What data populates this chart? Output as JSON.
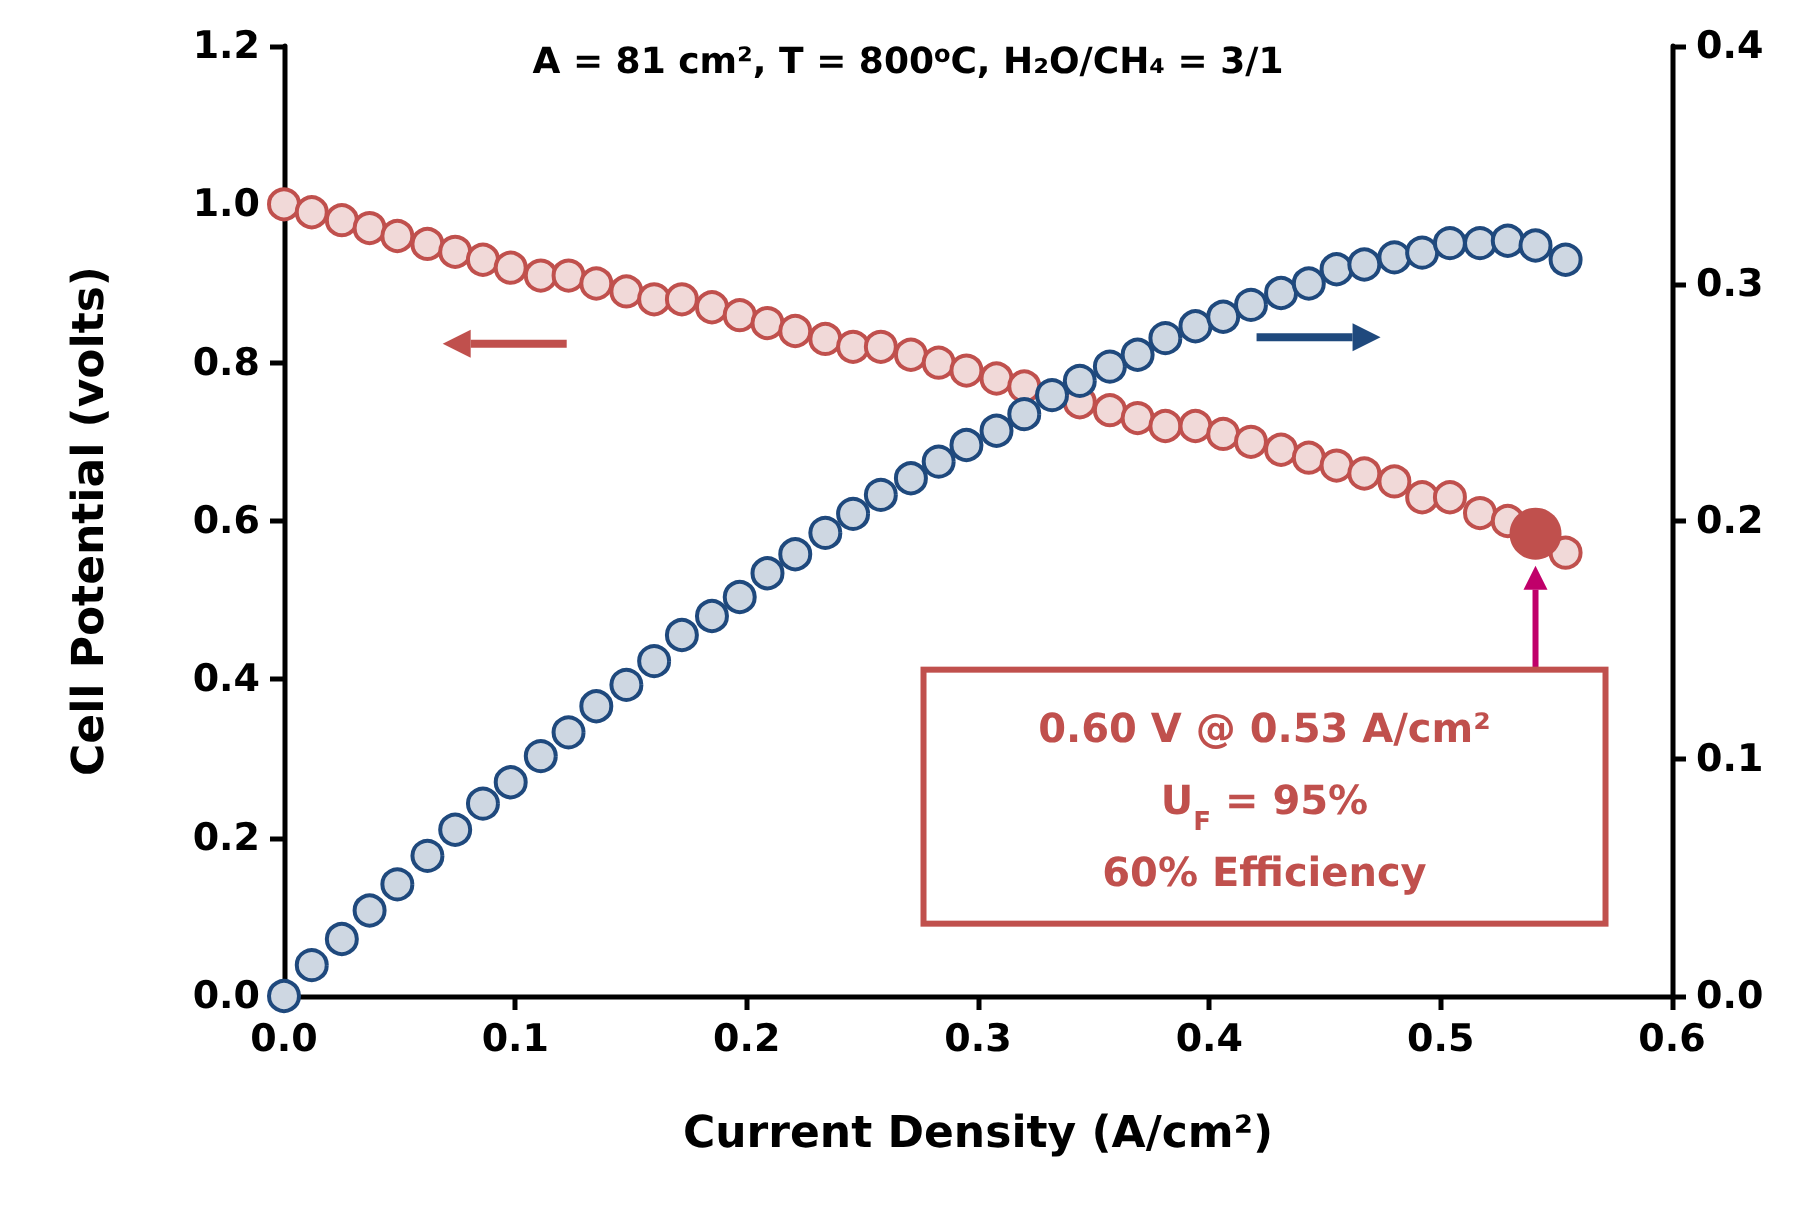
{
  "chart_data": {
    "type": "scatter",
    "title": "A = 81 cm², T = 800$^{o}$C, H₂O/CH₄ = 3/1",
    "xlabel": "Current Density (A/cm²)",
    "ylabel": "Cell Potential (volts)",
    "x": [
      0,
      0.012,
      0.025,
      0.037,
      0.049,
      0.062,
      0.074,
      0.086,
      0.098,
      0.111,
      0.123,
      0.135,
      0.148,
      0.16,
      0.172,
      0.185,
      0.197,
      0.209,
      0.221,
      0.234,
      0.246,
      0.258,
      0.271,
      0.283,
      0.295,
      0.308,
      0.32,
      0.332,
      0.344,
      0.357,
      0.369,
      0.381,
      0.394,
      0.406,
      0.418,
      0.431,
      0.443,
      0.455,
      0.467,
      0.48,
      0.492,
      0.504,
      0.517,
      0.529,
      0.541,
      0.554
    ],
    "series": [
      {
        "color": "#c0504d",
        "values": [
          1.0,
          0.99,
          0.98,
          0.97,
          0.96,
          0.95,
          0.94,
          0.93,
          0.92,
          0.91,
          0.91,
          0.9,
          0.89,
          0.88,
          0.88,
          0.87,
          0.86,
          0.85,
          0.84,
          0.83,
          0.82,
          0.82,
          0.81,
          0.8,
          0.79,
          0.78,
          0.77,
          null,
          0.75,
          0.74,
          0.73,
          0.72,
          0.72,
          0.71,
          0.7,
          0.69,
          0.68,
          0.67,
          0.66,
          0.65,
          0.63,
          0.63,
          0.61,
          0.6,
          null,
          0.56
        ]
      },
      {
        "color": "#1f497d",
        "axis": "y2",
        "values": [
          0.0,
          0.013,
          0.024,
          0.036,
          0.047,
          0.059,
          0.07,
          0.081,
          0.09,
          0.101,
          0.111,
          0.122,
          0.131,
          0.141,
          0.152,
          0.16,
          0.168,
          0.178,
          0.186,
          0.195,
          0.203,
          0.211,
          0.218,
          0.225,
          0.232,
          0.238,
          0.245,
          0.253,
          0.259,
          0.265,
          0.27,
          0.277,
          0.282,
          0.286,
          0.291,
          0.296,
          0.3,
          0.306,
          0.308,
          0.311,
          0.313,
          0.317,
          0.317,
          0.318,
          0.316,
          0.31
        ]
      },
      {
        "color": "#c0504d",
        "x": [
          0.541
        ],
        "values": [
          0.584
        ]
      }
    ],
    "annotations": [
      "0.60 V @ 0.53 A/cm²\nU$_{F}$ = 95%\n60% Efficiency"
    ],
    "xlim": [
      0,
      0.6
    ],
    "xticks": [
      {
        "value": 0,
        "label": "0.0"
      },
      0.1,
      0.2,
      0.3,
      0.4,
      0.5,
      0.6
    ],
    "ylim": [
      0,
      1.2
    ],
    "yticks": [
      {
        "value": 0,
        "label": "0.0"
      },
      0.2,
      0.4,
      0.6,
      0.8,
      {
        "value": 1,
        "label": "1.0"
      },
      1.2
    ],
    "y2lim": [
      0,
      0.4
    ],
    "y2ticks": [
      {
        "value": 0,
        "label": "0.0"
      },
      0.1,
      0.2,
      0.3,
      0.4
    ],
    "grid": false,
    "marker": "circle"
  }
}
